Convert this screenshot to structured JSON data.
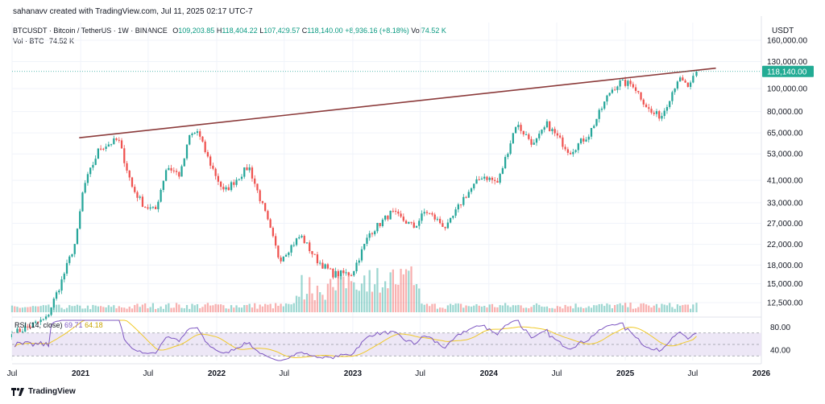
{
  "header": {
    "credit": "sahanavv created with TradingView.com, Jul 11, 2025 02:17 UTC-7"
  },
  "info": {
    "symbol": "BTCUSDT · Bitcoin / TetherUS · 1W · BINANCE",
    "o_label": "O",
    "o": "109,203.85",
    "h_label": "H",
    "h": "118,404.22",
    "l_label": "L",
    "l": "107,429.57",
    "c_label": "C",
    "c": "118,140.00",
    "change": "+8,936.16 (+8.18%)",
    "vol_label": "Vol",
    "vol": "74.52 K"
  },
  "volume_legend": {
    "label": "Vol · BTC",
    "value": "74.52 K"
  },
  "rsi_legend": {
    "label": "RSI (14, close)",
    "value1": "69.71",
    "value2": "64.18"
  },
  "footer": {
    "brand": "TradingView"
  },
  "colors": {
    "up": "#26a69a",
    "down": "#ef5350",
    "trendline": "#8b3a3a",
    "price_line": "#26a69a",
    "rsi": "#7e57c2",
    "rsi_ma": "#f0c929",
    "rsi_band": "#ede7f6",
    "price_tag_bg": "#22ab94"
  },
  "chart_data": [
    {
      "type": "candlestick",
      "title": "BTCUSDT · Bitcoin / TetherUS · 1W · BINANCE",
      "scale": "log",
      "currency_label": "USDT",
      "y_ticks": [
        "160,000.00",
        "130,000.00",
        "100,000.00",
        "80,000.00",
        "65,000.00",
        "53,000.00",
        "41,000.00",
        "33,000.00",
        "27,000.00",
        "22,000.00",
        "18,000.00",
        "15,000.00",
        "12,500.00"
      ],
      "x_ticks": [
        "Jul",
        "2021",
        "Jul",
        "2022",
        "Jul",
        "2023",
        "Jul",
        "2024",
        "Jul",
        "2025",
        "Jul",
        "2026"
      ],
      "last_price": "118,140.00",
      "anchors": [
        [
          "2020-07-01",
          9200
        ],
        [
          "2020-10-01",
          10700
        ],
        [
          "2020-11-10",
          15300
        ],
        [
          "2020-12-20",
          23000
        ],
        [
          "2021-01-08",
          38000
        ],
        [
          "2021-02-20",
          56000
        ],
        [
          "2021-04-12",
          61000
        ],
        [
          "2021-05-20",
          38000
        ],
        [
          "2021-06-20",
          32000
        ],
        [
          "2021-07-20",
          30500
        ],
        [
          "2021-08-20",
          47000
        ],
        [
          "2021-09-25",
          43000
        ],
        [
          "2021-10-20",
          63000
        ],
        [
          "2021-11-10",
          66000
        ],
        [
          "2021-12-10",
          50000
        ],
        [
          "2022-01-20",
          36500
        ],
        [
          "2022-03-28",
          47000
        ],
        [
          "2022-05-10",
          30000
        ],
        [
          "2022-06-18",
          19000
        ],
        [
          "2022-08-14",
          24000
        ],
        [
          "2022-09-25",
          19000
        ],
        [
          "2022-11-09",
          16500
        ],
        [
          "2022-12-30",
          16600
        ],
        [
          "2023-02-15",
          24500
        ],
        [
          "2023-04-15",
          30000
        ],
        [
          "2023-06-15",
          26000
        ],
        [
          "2023-07-15",
          30500
        ],
        [
          "2023-09-10",
          25800
        ],
        [
          "2023-10-25",
          34500
        ],
        [
          "2023-12-15",
          43000
        ],
        [
          "2024-01-25",
          40000
        ],
        [
          "2024-03-14",
          71000
        ],
        [
          "2024-05-01",
          58000
        ],
        [
          "2024-06-05",
          70500
        ],
        [
          "2024-08-05",
          54000
        ],
        [
          "2024-09-25",
          64000
        ],
        [
          "2024-11-22",
          98000
        ],
        [
          "2024-12-17",
          106000
        ],
        [
          "2025-01-22",
          104000
        ],
        [
          "2025-03-10",
          79000
        ],
        [
          "2025-04-08",
          76500
        ],
        [
          "2025-05-22",
          110000
        ],
        [
          "2025-06-22",
          101000
        ],
        [
          "2025-07-11",
          118140
        ]
      ],
      "trendline": {
        "from": [
          "2020-12-28",
          62000
        ],
        "to": [
          "2025-09-01",
          122000
        ]
      }
    },
    {
      "type": "bar",
      "title": "Vol · BTC",
      "note": "weekly volume, spiking during late 2022 to early 2023"
    },
    {
      "type": "line",
      "title": "RSI (14, close)",
      "y_ticks": [
        "80.00",
        "40.00"
      ],
      "band": [
        30,
        70
      ],
      "last_rsi": 69.71,
      "last_ma": 64.18
    }
  ]
}
